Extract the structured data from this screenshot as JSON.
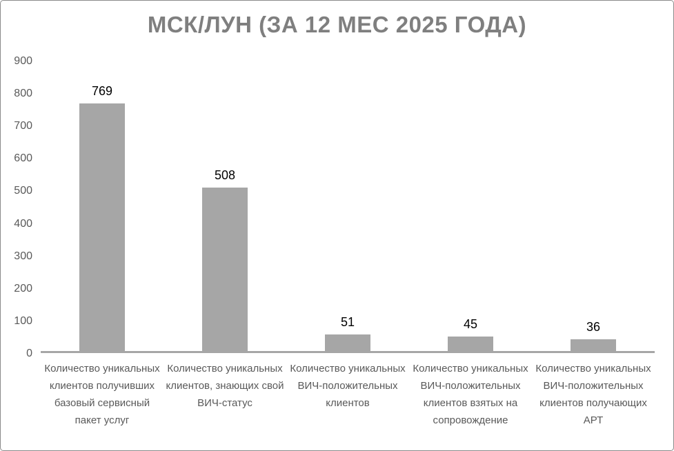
{
  "chart_data": {
    "type": "bar",
    "title": "МСК/ЛУН (ЗА 12 МЕС 2025 ГОДА)",
    "categories": [
      "Количество уникальных клиентов получивших базовый сервисный пакет услуг",
      "Количество уникальных клиентов, знающих свой ВИЧ-статус",
      "Количество уникальных ВИЧ-положительных клиентов",
      "Количество уникальных ВИЧ-положительных клиентов взятых на сопровождение",
      "Количество уникальных ВИЧ-положительных клиентов получающих АРТ"
    ],
    "values": [
      769,
      508,
      51,
      45,
      36
    ],
    "xlabel": "",
    "ylabel": "",
    "ylim": [
      0,
      900
    ],
    "yticks": [
      "900",
      "800",
      "700",
      "600",
      "500",
      "400",
      "300",
      "200",
      "100",
      "0"
    ],
    "grid": false,
    "legend": false,
    "bar_color": "#a6a6a6",
    "title_color": "#7f7f7f",
    "axis_text_color": "#595959",
    "data_label_color": "#000000",
    "axis_line_color": "#a6a6a6"
  }
}
